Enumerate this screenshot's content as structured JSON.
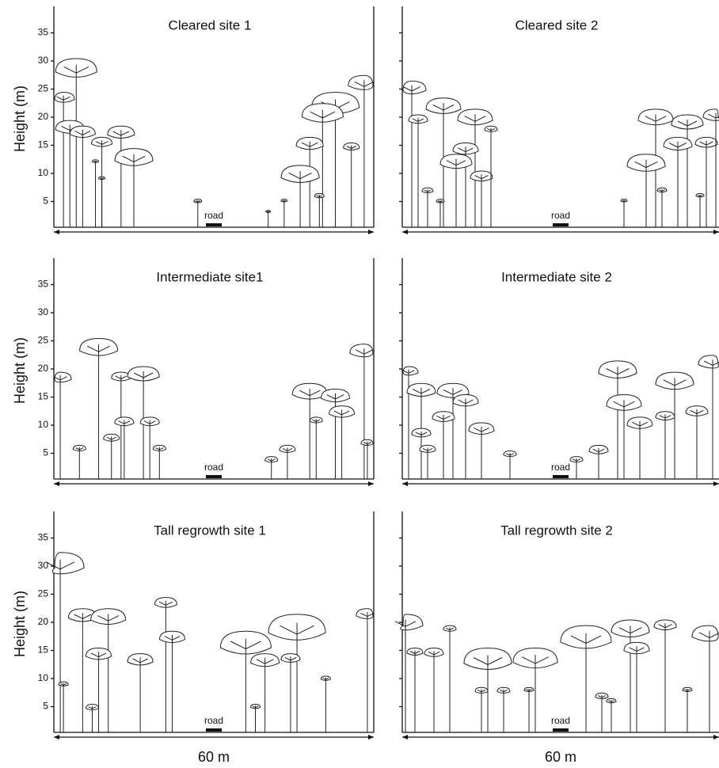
{
  "y_axis": {
    "label": "Height (m)",
    "ticks": [
      5,
      10,
      15,
      20,
      25,
      30,
      35
    ]
  },
  "x_label": "60 m",
  "panels": [
    {
      "title": "Cleared site 1",
      "road": "road"
    },
    {
      "title": "Cleared site 2",
      "road": "road"
    },
    {
      "title": "Intermediate site1",
      "road": "road"
    },
    {
      "title": "Intermediate site 2",
      "road": "road"
    },
    {
      "title": "Tall regrowth site 1",
      "road": "road"
    },
    {
      "title": "Tall regrowth site 2",
      "road": "road"
    }
  ]
}
